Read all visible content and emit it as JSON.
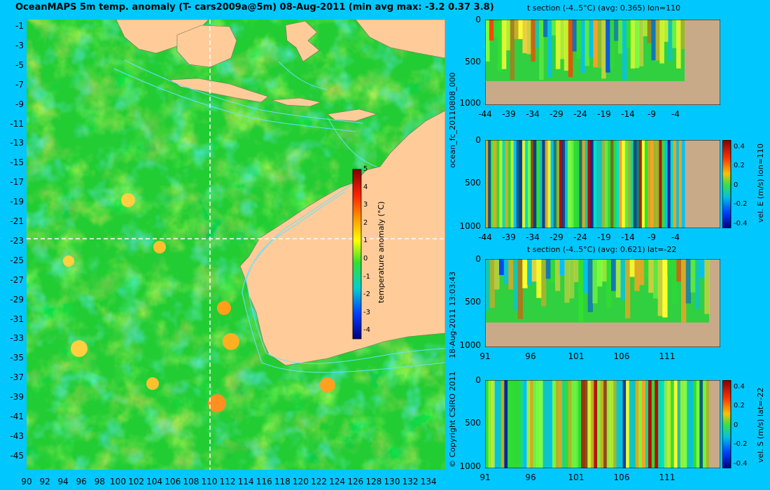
{
  "title": "OceanMAPS 5m temp. anomaly (T- cars2009a@5m) 08-Aug-2011 (min avg max: -3.2 0.37 3.8)",
  "side_labels": {
    "run_id": "ocean_fc_20110808_000",
    "generated": "18-Aug-2011 13:03:43",
    "copyright": "© Copyright CSIRO 2011"
  },
  "map": {
    "lat_ticks": [
      "-1",
      "-3",
      "-5",
      "-7",
      "-9",
      "-11",
      "-13",
      "-15",
      "-17",
      "-19",
      "-21",
      "-23",
      "-25",
      "-27",
      "-29",
      "-31",
      "-33",
      "-35",
      "-37",
      "-39",
      "-41",
      "-43",
      "-45"
    ],
    "lon_ticks": [
      "90",
      "92",
      "94",
      "96",
      "98",
      "100",
      "102",
      "104",
      "106",
      "108",
      "110",
      "112",
      "114",
      "116",
      "118",
      "120",
      "122",
      "124",
      "126",
      "128",
      "130",
      "132",
      "134"
    ],
    "section_lon": "110",
    "section_lat": "-22",
    "colorbar": {
      "label": "temperature anomaly (°C)",
      "ticks": [
        "5",
        "4",
        "3",
        "2",
        "1",
        "0",
        "-1",
        "-2",
        "-3",
        "-4"
      ],
      "range": [
        -4,
        5
      ]
    },
    "colors": {
      "land": "#ffcc99",
      "ocean_base": "#22cc33",
      "contour": "#66e0ff"
    }
  },
  "panels": [
    {
      "title": "t section (-4..5°C) (avg: 0.365) lon=110",
      "y_ticks": [
        "0",
        "500",
        "1000"
      ],
      "x_ticks": [
        "-44",
        "-39",
        "-34",
        "-29",
        "-24",
        "-19",
        "-14",
        "-9",
        "-4"
      ],
      "kind": "temperature",
      "colorbar": null
    },
    {
      "title": "",
      "y_ticks": [
        "0",
        "500",
        "1000"
      ],
      "x_ticks": [
        "-44",
        "-39",
        "-34",
        "-29",
        "-24",
        "-19",
        "-14",
        "-9",
        "-4"
      ],
      "kind": "velocity",
      "colorbar": {
        "label": "vel. E (m/s) lon=110",
        "ticks": [
          "0.4",
          "0.2",
          "0",
          "-0.2",
          "-0.4"
        ]
      }
    },
    {
      "title": "t section (-4..5°C) (avg: 0.621) lat=-22",
      "y_ticks": [
        "0",
        "500",
        "1000"
      ],
      "x_ticks": [
        "91",
        "96",
        "101",
        "106",
        "111"
      ],
      "kind": "temperature",
      "colorbar": null
    },
    {
      "title": "",
      "y_ticks": [
        "0",
        "500",
        "1000"
      ],
      "x_ticks": [
        "91",
        "96",
        "101",
        "106",
        "111"
      ],
      "kind": "velocity",
      "colorbar": {
        "label": "vel. S (m/s) lat=-22",
        "ticks": [
          "0.4",
          "0.2",
          "0",
          "-0.2",
          "-0.4"
        ]
      }
    }
  ]
}
